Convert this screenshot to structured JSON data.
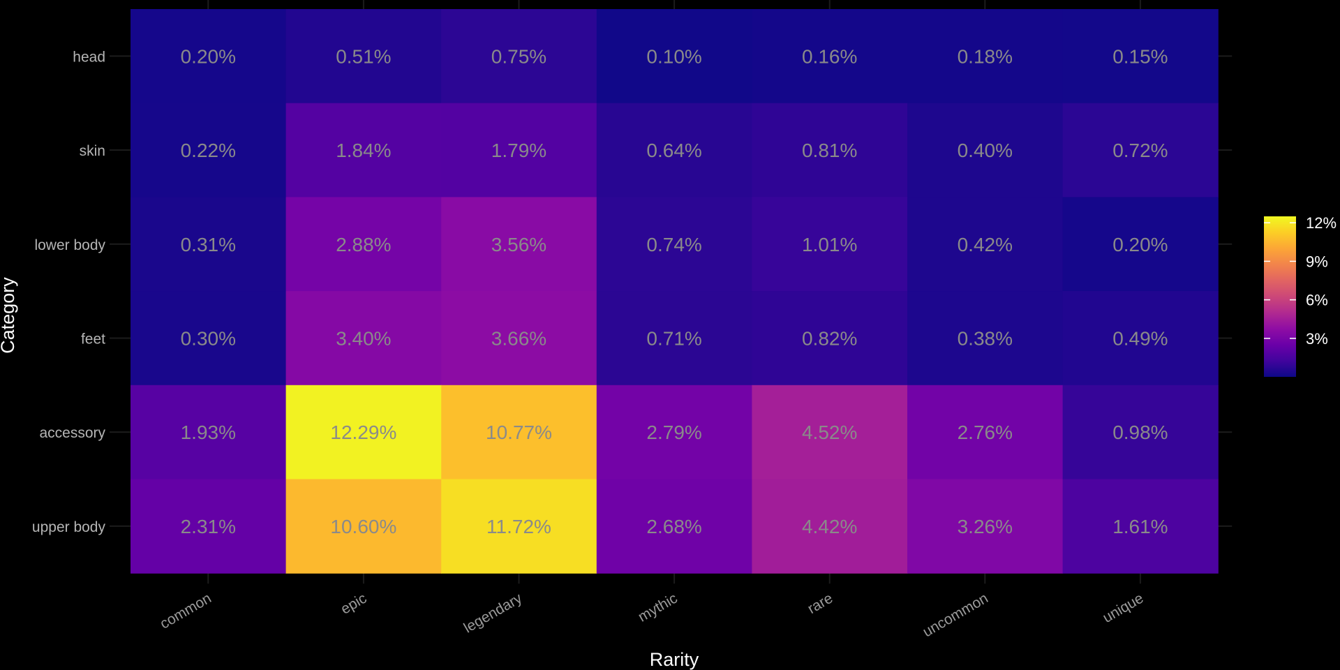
{
  "chart_data": {
    "type": "heatmap",
    "xlabel": "Rarity",
    "ylabel": "Category",
    "x_categories": [
      "common",
      "epic",
      "legendary",
      "mythic",
      "rare",
      "uncommon",
      "unique"
    ],
    "y_categories": [
      "head",
      "skin",
      "lower body",
      "feet",
      "accessory",
      "upper body"
    ],
    "value_unit": "%",
    "values": [
      [
        0.2,
        0.51,
        0.75,
        0.1,
        0.16,
        0.18,
        0.15
      ],
      [
        0.22,
        1.84,
        1.79,
        0.64,
        0.81,
        0.4,
        0.72
      ],
      [
        0.31,
        2.88,
        3.56,
        0.74,
        1.01,
        0.42,
        0.2
      ],
      [
        0.3,
        3.4,
        3.66,
        0.71,
        0.82,
        0.38,
        0.49
      ],
      [
        1.93,
        12.29,
        10.77,
        2.79,
        4.52,
        2.76,
        0.98
      ],
      [
        2.31,
        10.6,
        11.72,
        2.68,
        4.42,
        3.26,
        1.61
      ]
    ],
    "labels": [
      [
        "0.20%",
        "0.51%",
        "0.75%",
        "0.10%",
        "0.16%",
        "0.18%",
        "0.15%"
      ],
      [
        "0.22%",
        "1.84%",
        "1.79%",
        "0.64%",
        "0.81%",
        "0.40%",
        "0.72%"
      ],
      [
        "0.31%",
        "2.88%",
        "3.56%",
        "0.74%",
        "1.01%",
        "0.42%",
        "0.20%"
      ],
      [
        "0.30%",
        "3.40%",
        "3.66%",
        "0.71%",
        "0.82%",
        "0.38%",
        "0.49%"
      ],
      [
        "1.93%",
        "12.29%",
        "10.77%",
        "2.79%",
        "4.52%",
        "2.76%",
        "0.98%"
      ],
      [
        "2.31%",
        "10.60%",
        "11.72%",
        "2.68%",
        "4.42%",
        "3.26%",
        "1.61%"
      ]
    ],
    "colorscale": "plasma",
    "color_range": [
      0,
      12.5
    ],
    "legend": {
      "placement": "right",
      "ticks": [
        3,
        6,
        9,
        12
      ],
      "tick_labels": [
        "3%",
        "6%",
        "9%",
        "12%"
      ]
    },
    "grid": true
  }
}
